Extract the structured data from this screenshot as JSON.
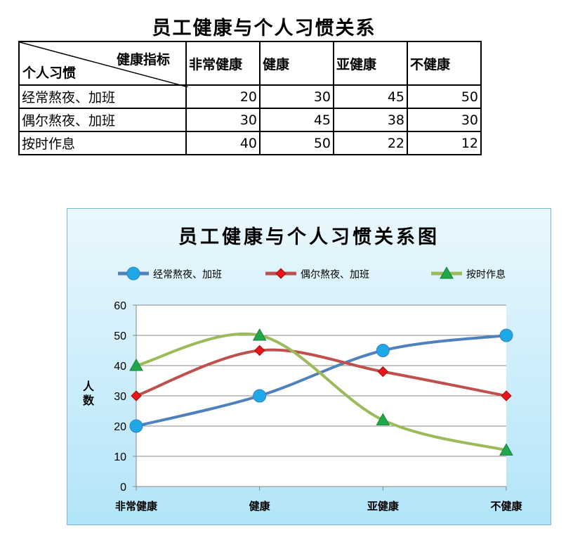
{
  "table": {
    "title": "员工健康与个人习惯关系",
    "corner_top": "健康指标",
    "corner_bottom": "个人习惯",
    "columns": [
      "非常健康",
      "健康",
      "亚健康",
      "不健康"
    ],
    "rows": [
      {
        "label": "经常熬夜、加班",
        "values": [
          20,
          30,
          45,
          50
        ]
      },
      {
        "label": "偶尔熬夜、加班",
        "values": [
          30,
          45,
          38,
          30
        ]
      },
      {
        "label": "按时作息",
        "values": [
          40,
          50,
          22,
          12
        ]
      }
    ]
  },
  "chart_data": {
    "type": "line",
    "smooth": true,
    "title": "员工健康与个人习惯关系图",
    "ylabel": "人数",
    "xlabel": "",
    "categories": [
      "非常健康",
      "健康",
      "亚健康",
      "不健康"
    ],
    "ylim": [
      0,
      60
    ],
    "yticks": [
      0,
      10,
      20,
      30,
      40,
      50,
      60
    ],
    "grid": true,
    "legend": "top",
    "series": [
      {
        "name": "经常熬夜、加班",
        "values": [
          20,
          30,
          45,
          50
        ],
        "color": "#4f81bd",
        "marker": "circle",
        "marker_color": "#1fa8e8"
      },
      {
        "name": "偶尔熬夜、加班",
        "values": [
          30,
          45,
          38,
          30
        ],
        "color": "#c0504d",
        "marker": "diamond",
        "marker_color": "#e8161a"
      },
      {
        "name": "按时作息",
        "values": [
          40,
          50,
          22,
          12
        ],
        "color": "#9bbb59",
        "marker": "triangle",
        "marker_color": "#1fa84a"
      }
    ]
  }
}
